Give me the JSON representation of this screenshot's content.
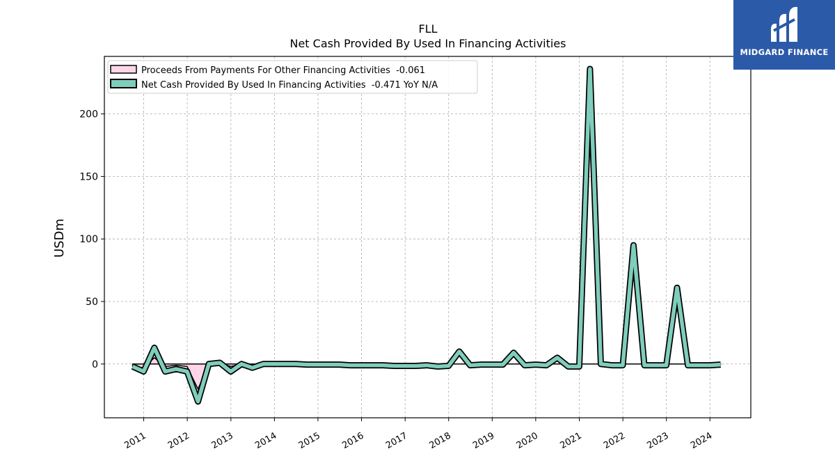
{
  "chart_data": {
    "type": "line",
    "title": "FLL",
    "subtitle": "Net Cash Provided By Used In Financing Activities",
    "ylabel": "USDm",
    "xlabel": "",
    "ylim": [
      -43,
      246
    ],
    "yticks": [
      0,
      50,
      100,
      150,
      200
    ],
    "xticks": [
      "2011",
      "2012",
      "2013",
      "2014",
      "2015",
      "2016",
      "2017",
      "2018",
      "2019",
      "2020",
      "2021",
      "2022",
      "2023",
      "2024"
    ],
    "grid": true,
    "legend_position": "upper-left",
    "x": [
      "2010-09-30",
      "2010-12-31",
      "2011-03-31",
      "2011-06-30",
      "2011-09-30",
      "2011-12-31",
      "2012-03-31",
      "2012-06-30",
      "2012-09-30",
      "2012-12-31",
      "2013-03-31",
      "2013-06-30",
      "2013-09-30",
      "2013-12-31",
      "2014-03-31",
      "2014-06-30",
      "2014-09-30",
      "2014-12-31",
      "2015-03-31",
      "2015-06-30",
      "2015-09-30",
      "2015-12-31",
      "2016-03-31",
      "2016-06-30",
      "2016-09-30",
      "2016-12-31",
      "2017-03-31",
      "2017-06-30",
      "2017-09-30",
      "2017-12-31",
      "2018-03-31",
      "2018-06-30",
      "2018-09-30",
      "2018-12-31",
      "2019-03-31",
      "2019-06-30",
      "2019-09-30",
      "2019-12-31",
      "2020-03-31",
      "2020-06-30",
      "2020-09-30",
      "2020-12-31",
      "2021-03-31",
      "2021-06-30",
      "2021-09-30",
      "2021-12-31",
      "2022-03-31",
      "2022-06-30",
      "2022-09-30",
      "2022-12-31",
      "2023-03-31",
      "2023-06-30",
      "2023-09-30",
      "2023-12-31",
      "2024-03-31"
    ],
    "series": [
      {
        "name": "Proceeds From Payments For Other Financing Activities  -0.061",
        "color": "#ffd6e8",
        "values": [
          -2,
          -3,
          5,
          -2,
          -1,
          -2,
          -20,
          0,
          1,
          -2,
          0,
          -1,
          0,
          0,
          0,
          0,
          0,
          0,
          0,
          0,
          0,
          0,
          0,
          0,
          0,
          0,
          0,
          0,
          0,
          0,
          0,
          0,
          0,
          0,
          0,
          0,
          0,
          0,
          0,
          0,
          0,
          0,
          0,
          0,
          0,
          0,
          0,
          0,
          0,
          0,
          0,
          0,
          0,
          0,
          -0.061
        ]
      },
      {
        "name": "Net Cash Provided By Used In Financing Activities  -0.471 YoY N/A",
        "color": "#7fcdbb",
        "values": [
          -2,
          -6,
          13,
          -6,
          -4,
          -6,
          -30,
          0,
          1,
          -6,
          0,
          -3,
          0,
          0,
          0,
          0,
          -0.5,
          -0.5,
          -0.5,
          -0.5,
          -1,
          -1,
          -1,
          -1,
          -1.5,
          -1.5,
          -1.5,
          -1,
          -2,
          -1.5,
          10,
          -1,
          -0.5,
          -0.5,
          -0.5,
          9,
          -1,
          -0.5,
          -1,
          5,
          -2,
          -2,
          236,
          0,
          -1,
          -1,
          95,
          -1,
          -1,
          -1,
          61,
          -1,
          -1,
          -1,
          -0.471
        ]
      }
    ]
  },
  "logo": {
    "text": "MIDGARD FINANCE",
    "color": "#2b5aa8"
  }
}
